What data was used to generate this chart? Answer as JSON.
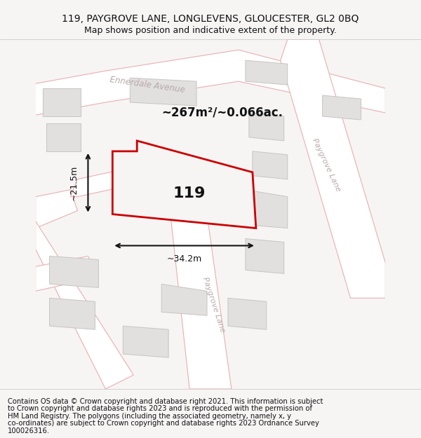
{
  "title_line1": "119, PAYGROVE LANE, LONGLEVENS, GLOUCESTER, GL2 0BQ",
  "title_line2": "Map shows position and indicative extent of the property.",
  "footer_lines": [
    "Contains OS data © Crown copyright and database right 2021. This information is subject",
    "to Crown copyright and database rights 2023 and is reproduced with the permission of",
    "HM Land Registry. The polygons (including the associated geometry, namely x, y",
    "co-ordinates) are subject to Crown copyright and database rights 2023 Ordnance Survey",
    "100026316."
  ],
  "area_label": "~267m²/~0.066ac.",
  "house_number": "119",
  "dim_width": "~34.2m",
  "dim_height": "~21.5m",
  "bg_color": "#f7f4f4",
  "road_line_color": "#e8b0b0",
  "road_fill_color": "#ffffff",
  "building_fill": "#e2dfdf",
  "building_edge": "#c8c4c4",
  "property_fill": "#f7f4f4",
  "property_edge": "#cc0000",
  "street_label_color": "#b8aaaa",
  "dim_color": "#111111",
  "title_fontsize": 10,
  "subtitle_fontsize": 9,
  "footer_fontsize": 7.2,
  "area_fontsize": 12,
  "house_fontsize": 16,
  "street_fontsize": 8.5,
  "dim_fontsize": 9
}
